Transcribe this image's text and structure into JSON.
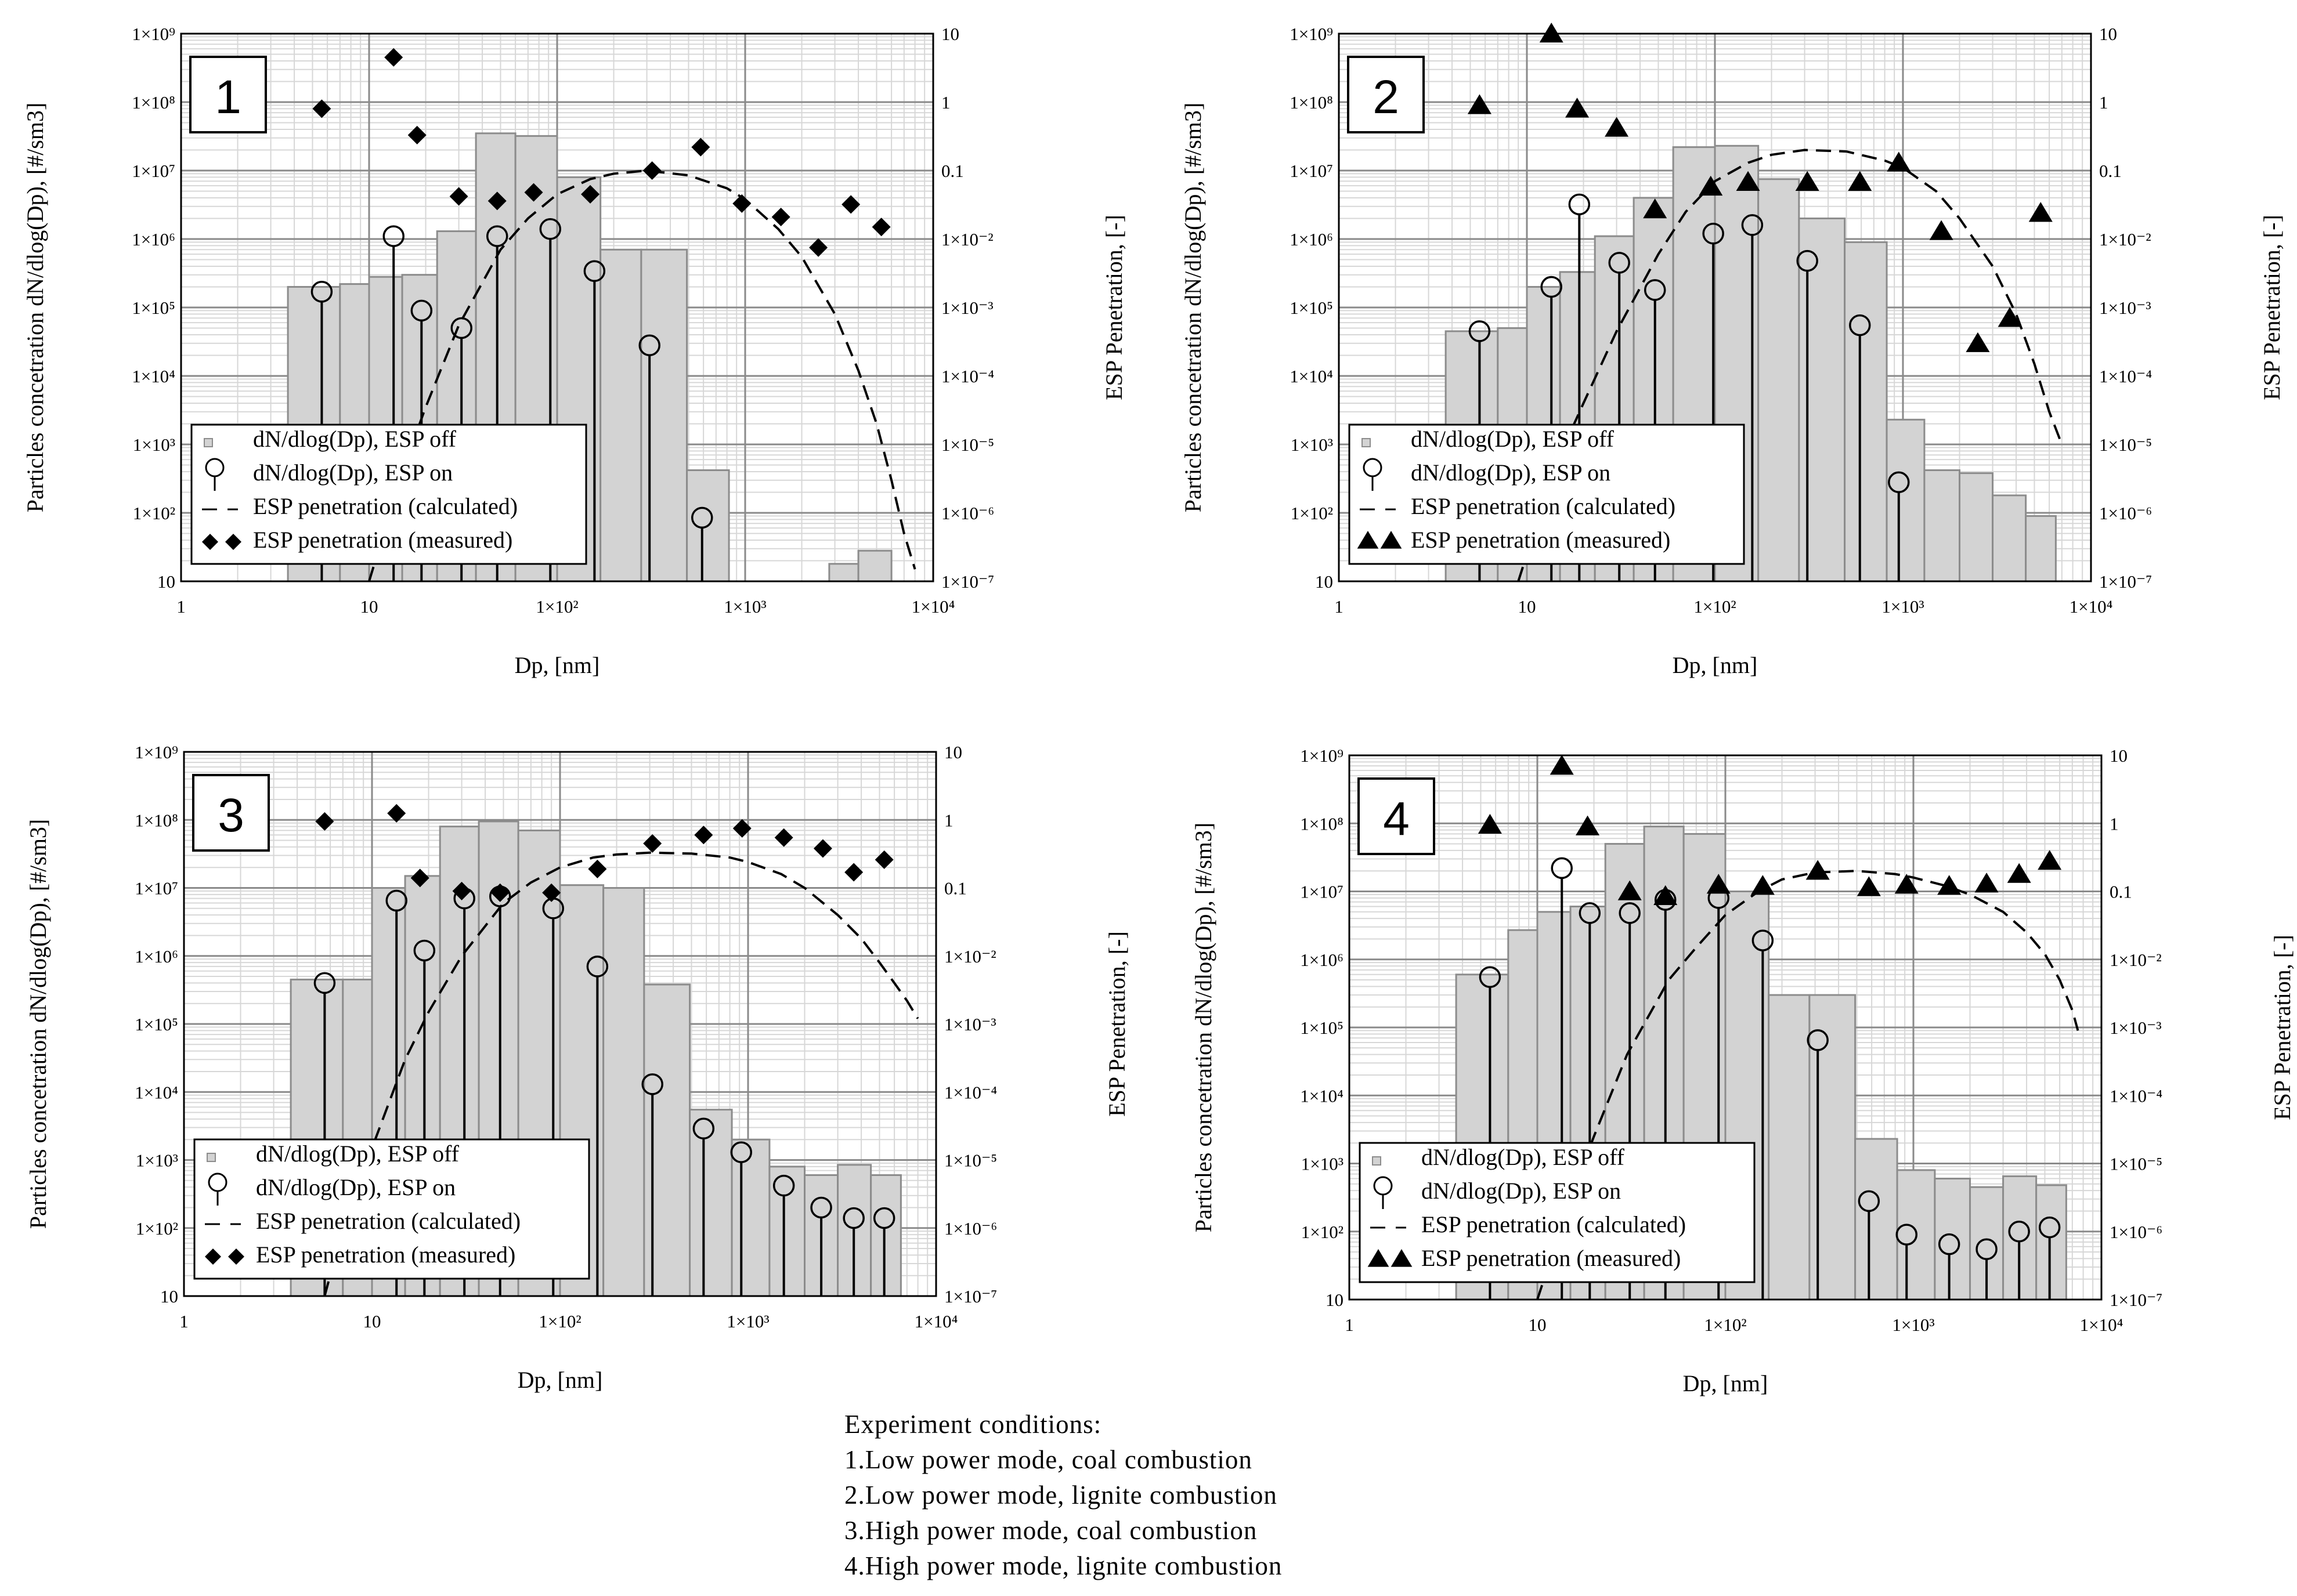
{
  "chart_data": [
    {
      "type": "bar",
      "panel_label": "1",
      "xlabel": "Dp, [nm]",
      "ylabel": "Particles concetration dN/dlog(Dp), [#/sm3]",
      "y2label": "ESP Penetration, [-]",
      "xscale": "log",
      "yscale": "log",
      "y2scale": "log",
      "xlim": [
        1,
        10000
      ],
      "ylim": [
        10,
        1000000000
      ],
      "y2lim": [
        1e-07,
        10
      ],
      "x_tick_labels": [
        "1",
        "10",
        "1×10²",
        "1×10³",
        "1×10⁴"
      ],
      "y_tick_labels": [
        "10",
        "1×10²",
        "1×10³",
        "1×10⁴",
        "1×10⁵",
        "1×10⁶",
        "1×10⁷",
        "1×10⁸",
        "1×10⁹"
      ],
      "y2_tick_labels": [
        "1×10⁻⁷",
        "1×10⁻⁶",
        "1×10⁻⁵",
        "1×10⁻⁴",
        "1×10⁻³",
        "1×10⁻²",
        "0.1",
        "1",
        "10"
      ],
      "legend": [
        "dN/dlog(Dp), ESP off",
        "dN/dlog(Dp), ESP on",
        "ESP penetration (calculated)",
        "ESP penetration (measured)"
      ],
      "measured_marker": "diamond",
      "bars_esp_off": [
        {
          "x0": 3.7,
          "x1": 7.0,
          "value": 200000
        },
        {
          "x0": 7.0,
          "x1": 10.0,
          "value": 220000
        },
        {
          "x0": 10.0,
          "x1": 15.0,
          "value": 280000
        },
        {
          "x0": 15.0,
          "x1": 23.0,
          "value": 300000
        },
        {
          "x0": 23.0,
          "x1": 37.0,
          "value": 1300000
        },
        {
          "x0": 37.0,
          "x1": 60.0,
          "value": 35000000
        },
        {
          "x0": 60.0,
          "x1": 100.0,
          "value": 32000000
        },
        {
          "x0": 100.0,
          "x1": 170.0,
          "value": 8000000
        },
        {
          "x0": 170.0,
          "x1": 280.0,
          "value": 700000
        },
        {
          "x0": 280.0,
          "x1": 490.0,
          "value": 700000
        },
        {
          "x0": 490.0,
          "x1": 820.0,
          "value": 420
        },
        {
          "x0": 2800.0,
          "x1": 4000.0,
          "value": 18
        },
        {
          "x0": 4000.0,
          "x1": 6000.0,
          "value": 28
        }
      ],
      "esp_on": {
        "x": [
          5.6,
          13.5,
          19,
          31,
          48,
          92,
          158,
          310,
          590
        ],
        "values": [
          170000,
          1100000,
          90000,
          50000,
          1100000,
          1400000,
          340000,
          28000,
          85
        ]
      },
      "esp_penetration_calculated": {
        "x": [
          10,
          15,
          20,
          30,
          50,
          70,
          100,
          150,
          200,
          300,
          500,
          800,
          1000,
          1500,
          2000,
          3000,
          4000,
          5000,
          6000,
          7000,
          8000
        ],
        "values": [
          1e-07,
          4e-06,
          3.5e-05,
          0.00055,
          0.007,
          0.02,
          0.045,
          0.075,
          0.09,
          0.1,
          0.085,
          0.055,
          0.038,
          0.014,
          0.0055,
          0.0008,
          0.00012,
          2e-05,
          3e-06,
          5e-07,
          1.5e-07
        ]
      },
      "esp_penetration_measured": {
        "x": [
          5.6,
          13.5,
          18,
          30,
          48,
          75,
          150,
          320,
          580,
          960,
          1550,
          2450,
          3650,
          5300
        ],
        "values": [
          0.8,
          4.5,
          0.33,
          0.042,
          0.036,
          0.048,
          0.045,
          0.1,
          0.22,
          0.033,
          0.021,
          0.0075,
          0.032,
          0.015
        ]
      }
    },
    {
      "type": "bar",
      "panel_label": "2",
      "xlabel": "Dp, [nm]",
      "ylabel": "Particles concetration dN/dlog(Dp), [#/sm3]",
      "y2label": "ESP Penetration, [-]",
      "xscale": "log",
      "yscale": "log",
      "y2scale": "log",
      "xlim": [
        1,
        10000
      ],
      "ylim": [
        10,
        1000000000
      ],
      "y2lim": [
        1e-07,
        10
      ],
      "x_tick_labels": [
        "1",
        "10",
        "1×10²",
        "1×10³",
        "1×10⁴"
      ],
      "y_tick_labels": [
        "10",
        "1×10²",
        "1×10³",
        "1×10⁴",
        "1×10⁵",
        "1×10⁶",
        "1×10⁷",
        "1×10⁸",
        "1×10⁹"
      ],
      "y2_tick_labels": [
        "1×10⁻⁷",
        "1×10⁻⁶",
        "1×10⁻⁵",
        "1×10⁻⁴",
        "1×10⁻³",
        "1×10⁻²",
        "0.1",
        "1",
        "10"
      ],
      "legend": [
        "dN/dlog(Dp), ESP off",
        "dN/dlog(Dp), ESP on",
        "ESP penetration (calculated)",
        "ESP penetration (measured)"
      ],
      "measured_marker": "triangle",
      "bars_esp_off": [
        {
          "x0": 3.7,
          "x1": 7.0,
          "value": 45000
        },
        {
          "x0": 7.0,
          "x1": 10.0,
          "value": 50000
        },
        {
          "x0": 10.0,
          "x1": 15.0,
          "value": 200000
        },
        {
          "x0": 15.0,
          "x1": 23.0,
          "value": 330000
        },
        {
          "x0": 23.0,
          "x1": 37.0,
          "value": 1100000
        },
        {
          "x0": 37.0,
          "x1": 60.0,
          "value": 4000000
        },
        {
          "x0": 60.0,
          "x1": 100.0,
          "value": 22000000
        },
        {
          "x0": 100.0,
          "x1": 170.0,
          "value": 23000000
        },
        {
          "x0": 170.0,
          "x1": 280.0,
          "value": 7500000
        },
        {
          "x0": 280.0,
          "x1": 490.0,
          "value": 2000000
        },
        {
          "x0": 490.0,
          "x1": 820.0,
          "value": 900000
        },
        {
          "x0": 820.0,
          "x1": 1300.0,
          "value": 2300
        },
        {
          "x0": 1300.0,
          "x1": 2000.0,
          "value": 420
        },
        {
          "x0": 2000.0,
          "x1": 3000.0,
          "value": 380
        },
        {
          "x0": 3000.0,
          "x1": 4500.0,
          "value": 180
        },
        {
          "x0": 4500.0,
          "x1": 6500.0,
          "value": 90
        }
      ],
      "esp_on": {
        "x": [
          5.6,
          13.5,
          19,
          31,
          48,
          98,
          158,
          310,
          590,
          950
        ],
        "values": [
          45000,
          200000,
          3200000,
          450000,
          180000,
          1200000,
          1600000,
          480000,
          55000,
          280
        ]
      },
      "esp_penetration_calculated": {
        "x": [
          9,
          12,
          15,
          20,
          30,
          50,
          70,
          100,
          150,
          200,
          300,
          500,
          800,
          1000,
          1500,
          2000,
          3000,
          4000,
          5000,
          6000,
          7000
        ],
        "values": [
          1e-07,
          1.2e-06,
          7e-06,
          4e-05,
          0.00045,
          0.006,
          0.025,
          0.07,
          0.13,
          0.17,
          0.2,
          0.19,
          0.14,
          0.11,
          0.05,
          0.02,
          0.004,
          0.0008,
          0.00015,
          3e-05,
          1e-05
        ]
      },
      "esp_penetration_measured": {
        "x": [
          5.6,
          13.5,
          18.5,
          30,
          48,
          95,
          150,
          310,
          590,
          950,
          1600,
          2500,
          3700,
          5400
        ],
        "values": [
          0.9,
          10,
          0.8,
          0.42,
          0.027,
          0.058,
          0.068,
          0.068,
          0.068,
          0.13,
          0.013,
          0.0003,
          0.0007,
          0.024
        ]
      }
    },
    {
      "type": "bar",
      "panel_label": "3",
      "xlabel": "Dp, [nm]",
      "ylabel": "Particles concetration dN/dlog(Dp), [#/sm3]",
      "y2label": "ESP Penetration, [-]",
      "xscale": "log",
      "yscale": "log",
      "y2scale": "log",
      "xlim": [
        1,
        10000
      ],
      "ylim": [
        10,
        1000000000
      ],
      "y2lim": [
        1e-07,
        10
      ],
      "x_tick_labels": [
        "1",
        "10",
        "1×10²",
        "1×10³",
        "1×10⁴"
      ],
      "y_tick_labels": [
        "10",
        "1×10²",
        "1×10³",
        "1×10⁴",
        "1×10⁵",
        "1×10⁶",
        "1×10⁷",
        "1×10⁸",
        "1×10⁹"
      ],
      "y2_tick_labels": [
        "1×10⁻⁷",
        "1×10⁻⁶",
        "1×10⁻⁵",
        "1×10⁻⁴",
        "1×10⁻³",
        "1×10⁻²",
        "0.1",
        "1",
        "10"
      ],
      "legend": [
        "dN/dlog(Dp), ESP off",
        "dN/dlog(Dp), ESP on",
        "ESP penetration (calculated)",
        "ESP penetration (measured)"
      ],
      "measured_marker": "diamond",
      "bars_esp_off": [
        {
          "x0": 3.7,
          "x1": 7.0,
          "value": 450000
        },
        {
          "x0": 7.0,
          "x1": 10.0,
          "value": 450000
        },
        {
          "x0": 10.0,
          "x1": 15.0,
          "value": 10000000
        },
        {
          "x0": 15.0,
          "x1": 23.0,
          "value": 15000000
        },
        {
          "x0": 23.0,
          "x1": 37.0,
          "value": 80000000
        },
        {
          "x0": 37.0,
          "x1": 60.0,
          "value": 95000000
        },
        {
          "x0": 60.0,
          "x1": 100.0,
          "value": 70000000
        },
        {
          "x0": 100.0,
          "x1": 170.0,
          "value": 11000000
        },
        {
          "x0": 170.0,
          "x1": 280.0,
          "value": 10000000
        },
        {
          "x0": 280.0,
          "x1": 490.0,
          "value": 380000
        },
        {
          "x0": 490.0,
          "x1": 820.0,
          "value": 5500
        },
        {
          "x0": 820.0,
          "x1": 1300.0,
          "value": 2000
        },
        {
          "x0": 1300.0,
          "x1": 2000.0,
          "value": 800
        },
        {
          "x0": 2000.0,
          "x1": 3000.0,
          "value": 600
        },
        {
          "x0": 3000.0,
          "x1": 4500.0,
          "value": 850
        },
        {
          "x0": 4500.0,
          "x1": 6500.0,
          "value": 600
        }
      ],
      "esp_on": {
        "x": [
          5.6,
          13.5,
          19,
          31,
          48,
          92,
          158,
          310,
          580,
          920,
          1550,
          2450,
          3650,
          5300
        ],
        "values": [
          400000,
          6500000,
          1200000,
          7000000,
          7500000,
          5000000,
          700000,
          13000,
          2900,
          1300,
          420,
          200,
          140,
          140
        ]
      },
      "esp_penetration_calculated": {
        "x": [
          5.6,
          7,
          10,
          15,
          20,
          30,
          50,
          70,
          100,
          150,
          200,
          300,
          500,
          800,
          1000,
          1500,
          2000,
          3000,
          4000,
          5000,
          6000,
          7000,
          8000
        ],
        "values": [
          1e-07,
          1e-06,
          1.5e-05,
          0.0003,
          0.0015,
          0.01,
          0.06,
          0.12,
          0.2,
          0.28,
          0.31,
          0.33,
          0.32,
          0.28,
          0.24,
          0.16,
          0.1,
          0.04,
          0.018,
          0.008,
          0.004,
          0.0022,
          0.0012
        ]
      },
      "esp_penetration_measured": {
        "x": [
          5.6,
          13.5,
          18,
          30,
          48,
          90,
          158,
          310,
          580,
          930,
          1550,
          2500,
          3650,
          5300
        ],
        "values": [
          0.95,
          1.25,
          0.14,
          0.09,
          0.085,
          0.085,
          0.19,
          0.45,
          0.6,
          0.75,
          0.55,
          0.38,
          0.17,
          0.26
        ]
      }
    },
    {
      "type": "bar",
      "panel_label": "4",
      "xlabel": "Dp, [nm]",
      "ylabel": "Particles concetration dN/dlog(Dp), [#/sm3]",
      "y2label": "ESP Penetration, [-]",
      "xscale": "log",
      "yscale": "log",
      "y2scale": "log",
      "xlim": [
        1,
        10000
      ],
      "ylim": [
        10,
        1000000000
      ],
      "y2lim": [
        1e-07,
        10
      ],
      "x_tick_labels": [
        "1",
        "10",
        "1×10²",
        "1×10³",
        "1×10⁴"
      ],
      "y_tick_labels": [
        "10",
        "1×10²",
        "1×10³",
        "1×10⁴",
        "1×10⁵",
        "1×10⁶",
        "1×10⁷",
        "1×10⁸",
        "1×10⁹"
      ],
      "y2_tick_labels": [
        "1×10⁻⁷",
        "1×10⁻⁶",
        "1×10⁻⁵",
        "1×10⁻⁴",
        "1×10⁻³",
        "1×10⁻²",
        "0.1",
        "1",
        "10"
      ],
      "legend": [
        "dN/dlog(Dp), ESP off",
        "dN/dlog(Dp), ESP on",
        "ESP penetration (calculated)",
        "ESP penetration (measured)"
      ],
      "measured_marker": "triangle",
      "bars_esp_off": [
        {
          "x0": 3.7,
          "x1": 7.0,
          "value": 600000
        },
        {
          "x0": 7.0,
          "x1": 10.0,
          "value": 2700000
        },
        {
          "x0": 10.0,
          "x1": 15.0,
          "value": 5000000
        },
        {
          "x0": 15.0,
          "x1": 23.0,
          "value": 6000000
        },
        {
          "x0": 23.0,
          "x1": 37.0,
          "value": 50000000
        },
        {
          "x0": 37.0,
          "x1": 60.0,
          "value": 90000000
        },
        {
          "x0": 60.0,
          "x1": 100.0,
          "value": 70000000
        },
        {
          "x0": 100.0,
          "x1": 170.0,
          "value": 10000000
        },
        {
          "x0": 170.0,
          "x1": 280.0,
          "value": 300000
        },
        {
          "x0": 280.0,
          "x1": 490.0,
          "value": 300000
        },
        {
          "x0": 490.0,
          "x1": 820.0,
          "value": 2300
        },
        {
          "x0": 820.0,
          "x1": 1300.0,
          "value": 800
        },
        {
          "x0": 1300.0,
          "x1": 2000.0,
          "value": 600
        },
        {
          "x0": 2000.0,
          "x1": 3000.0,
          "value": 450
        },
        {
          "x0": 3000.0,
          "x1": 4500.0,
          "value": 650
        },
        {
          "x0": 4500.0,
          "x1": 6500.0,
          "value": 480
        }
      ],
      "esp_on": {
        "x": [
          5.6,
          13.5,
          19,
          31,
          48,
          92,
          158,
          310,
          580,
          920,
          1550,
          2450,
          3650,
          5300
        ],
        "values": [
          550000,
          22000000,
          4800000,
          4800000,
          7500000,
          8000000,
          1900000,
          65000,
          280,
          90,
          65,
          55,
          100,
          115
        ]
      },
      "esp_penetration_calculated": {
        "x": [
          10,
          15,
          20,
          30,
          50,
          70,
          100,
          150,
          200,
          300,
          500,
          800,
          1000,
          1500,
          2000,
          3000,
          4000,
          5000,
          6000,
          7000,
          7500
        ],
        "values": [
          1e-07,
          3e-06,
          2.5e-05,
          0.0004,
          0.005,
          0.015,
          0.045,
          0.1,
          0.15,
          0.19,
          0.2,
          0.18,
          0.16,
          0.12,
          0.09,
          0.05,
          0.025,
          0.012,
          0.005,
          0.0018,
          0.0009
        ]
      },
      "esp_penetration_measured": {
        "x": [
          5.6,
          13.5,
          18.5,
          31,
          48,
          92,
          158,
          310,
          580,
          920,
          1550,
          2450,
          3650,
          5300
        ],
        "values": [
          0.95,
          7,
          0.9,
          0.1,
          0.085,
          0.125,
          0.12,
          0.2,
          0.115,
          0.125,
          0.12,
          0.13,
          0.18,
          0.28
        ]
      }
    }
  ],
  "conditions": {
    "title": "Experiment  conditions:",
    "items": [
      "1.Low power mode, coal combustion",
      "2.Low power mode, lignite combustion",
      "3.High power mode, coal combustion",
      "4.High power mode, lignite combustion"
    ]
  },
  "colors": {
    "bar_fill": "#d3d3d3",
    "bar_stroke": "#8c8c8c",
    "grid_minor": "#d7d7d7",
    "grid_major": "#8a8a8a",
    "ink": "#000000"
  }
}
